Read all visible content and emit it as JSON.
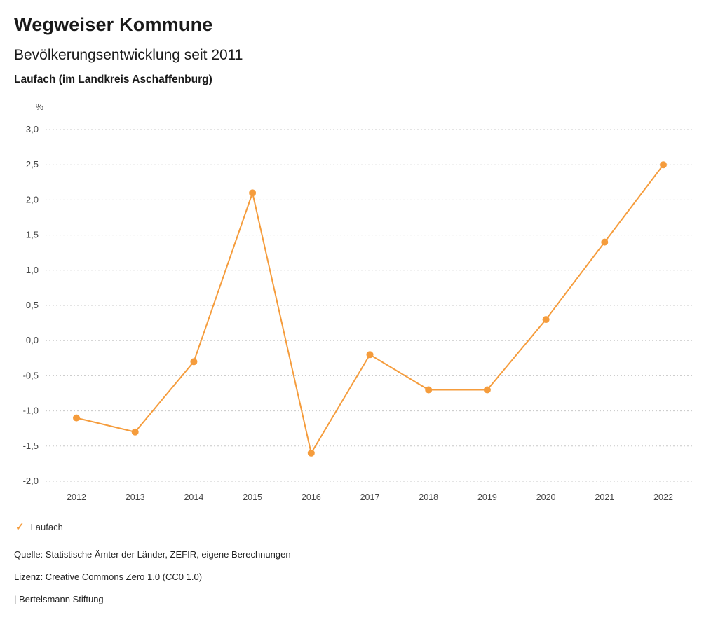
{
  "header": {
    "title": "Wegweiser Kommune",
    "subtitle": "Bevölkerungsentwicklung seit 2011",
    "location": "Laufach (im Landkreis Aschaffenburg)"
  },
  "chart_data": {
    "type": "line",
    "title": "Bevölkerungsentwicklung seit 2011",
    "unit_label": "%",
    "categories": [
      "2012",
      "2013",
      "2014",
      "2015",
      "2016",
      "2017",
      "2018",
      "2019",
      "2020",
      "2021",
      "2022"
    ],
    "series": [
      {
        "name": "Laufach",
        "color": "#F59C3C",
        "values": [
          -1.1,
          -1.3,
          -0.3,
          2.1,
          -1.6,
          -0.2,
          -0.7,
          -0.7,
          0.3,
          1.4,
          2.5
        ]
      }
    ],
    "ylim": [
      -2.0,
      3.0
    ],
    "ytick_step": 0.5,
    "grid": true,
    "gridline_color": "#c8c8c8",
    "axis_text_color": "#444444",
    "legend_position": "bottom-left",
    "decimal_separator": ","
  },
  "footer": {
    "source": "Quelle: Statistische Ämter der Länder, ZEFIR, eigene Berechnungen",
    "license": "Lizenz: Creative Commons Zero 1.0 (CC0 1.0)",
    "brand": "| Bertelsmann Stiftung"
  }
}
